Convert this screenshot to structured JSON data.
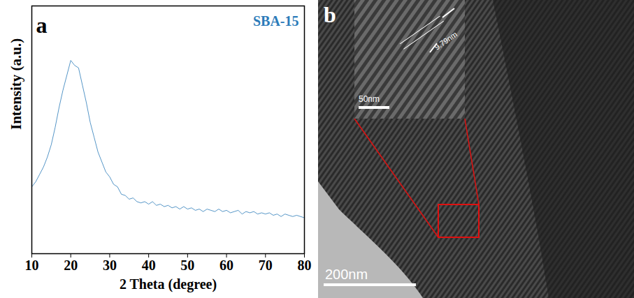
{
  "chart_data": {
    "type": "line",
    "panel": "a",
    "x_label": "2 Theta (degree)",
    "y_label": "Intensity (a.u.)",
    "x": [
      10,
      11,
      12,
      13,
      14,
      15,
      16,
      17,
      18,
      19,
      20,
      21,
      22,
      23,
      24,
      25,
      26,
      27,
      28,
      29,
      30,
      31,
      32,
      33,
      34,
      35,
      36,
      37,
      38,
      39,
      40,
      41,
      42,
      43,
      44,
      45,
      46,
      47,
      48,
      49,
      50,
      51,
      52,
      53,
      54,
      55,
      56,
      57,
      58,
      59,
      60,
      61,
      62,
      63,
      64,
      65,
      66,
      67,
      68,
      69,
      70,
      71,
      72,
      73,
      74,
      75,
      76,
      77,
      78,
      79,
      80
    ],
    "series": [
      {
        "name": "SBA-15",
        "color": "#2b7bb9",
        "values": [
          27,
          29,
          32,
          35,
          39,
          44,
          51,
          59,
          66,
          72,
          78,
          76,
          75,
          68,
          61,
          53,
          47,
          41,
          37,
          33,
          31,
          28,
          27,
          24,
          23.5,
          22,
          22.5,
          21,
          20.5,
          21,
          20,
          21,
          19.5,
          20,
          19,
          19.5,
          18.5,
          19,
          18,
          19,
          18,
          18.5,
          17.5,
          18,
          17,
          18,
          17.5,
          17,
          18,
          17,
          17.5,
          16.5,
          17,
          17.5,
          16,
          17,
          16.5,
          17,
          16,
          16.5,
          16,
          16.5,
          15.5,
          16,
          15,
          16,
          15.5,
          15,
          15.5,
          15,
          14.5
        ]
      }
    ],
    "xlim": [
      10,
      80
    ],
    "xticks": [
      10,
      20,
      30,
      40,
      50,
      60,
      70,
      80
    ],
    "ylim": [
      0,
      100
    ],
    "tick_labels": "x",
    "grid": false
  },
  "image": {
    "panel": "b",
    "scale_bar": "200nm",
    "inset_scale_bar": "50nm",
    "spacing_label": "9.79nm"
  }
}
